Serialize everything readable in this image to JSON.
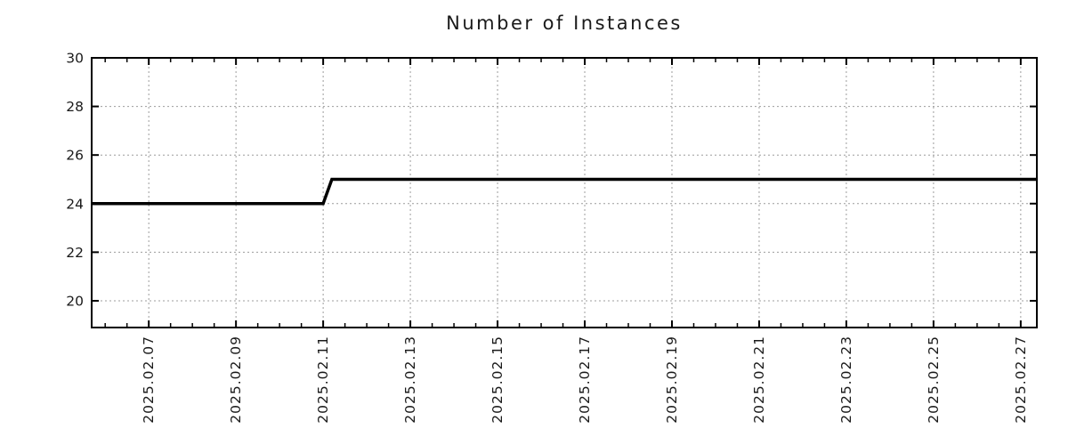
{
  "chart_data": {
    "type": "line",
    "title": "Number of Instances",
    "legend": {
      "visible": false
    },
    "grid": {
      "visible": true,
      "line_style": "dotted",
      "at": "major ticks"
    },
    "style": {
      "background": "#ffffff",
      "line_color": "#000000",
      "line_width": 3.5,
      "grid_color": "#9c9c9c",
      "axis_color": "#000000",
      "text_color": "#1a1a1a"
    },
    "x_axis": {
      "unit": "date (YYYY.MM.DD)",
      "range_day_of_feb_2025": [
        5.69,
        27.37
      ],
      "major_tick_days": [
        7,
        9,
        11,
        13,
        15,
        17,
        19,
        21,
        23,
        25,
        27
      ],
      "major_tick_labels": [
        "2025.02.07",
        "2025.02.09",
        "2025.02.11",
        "2025.02.13",
        "2025.02.15",
        "2025.02.17",
        "2025.02.19",
        "2025.02.21",
        "2025.02.23",
        "2025.02.25",
        "2025.02.27"
      ],
      "minor_tick_interval_days": 0.5
    },
    "y_axis": {
      "range": [
        18.9,
        30
      ],
      "major_tick_values": [
        20,
        22,
        24,
        26,
        28,
        30
      ],
      "major_tick_labels": [
        "20",
        "22",
        "24",
        "26",
        "28",
        "30"
      ]
    },
    "series": [
      {
        "name": "number-of-instances",
        "summary": "24 instances until 2025-02-11, rising to 25 instances from 2025-02-11 onward",
        "points": [
          {
            "day": 5.69,
            "value": 24
          },
          {
            "day": 11.0,
            "value": 24
          },
          {
            "day": 11.2,
            "value": 25
          },
          {
            "day": 27.37,
            "value": 25
          }
        ]
      }
    ]
  }
}
